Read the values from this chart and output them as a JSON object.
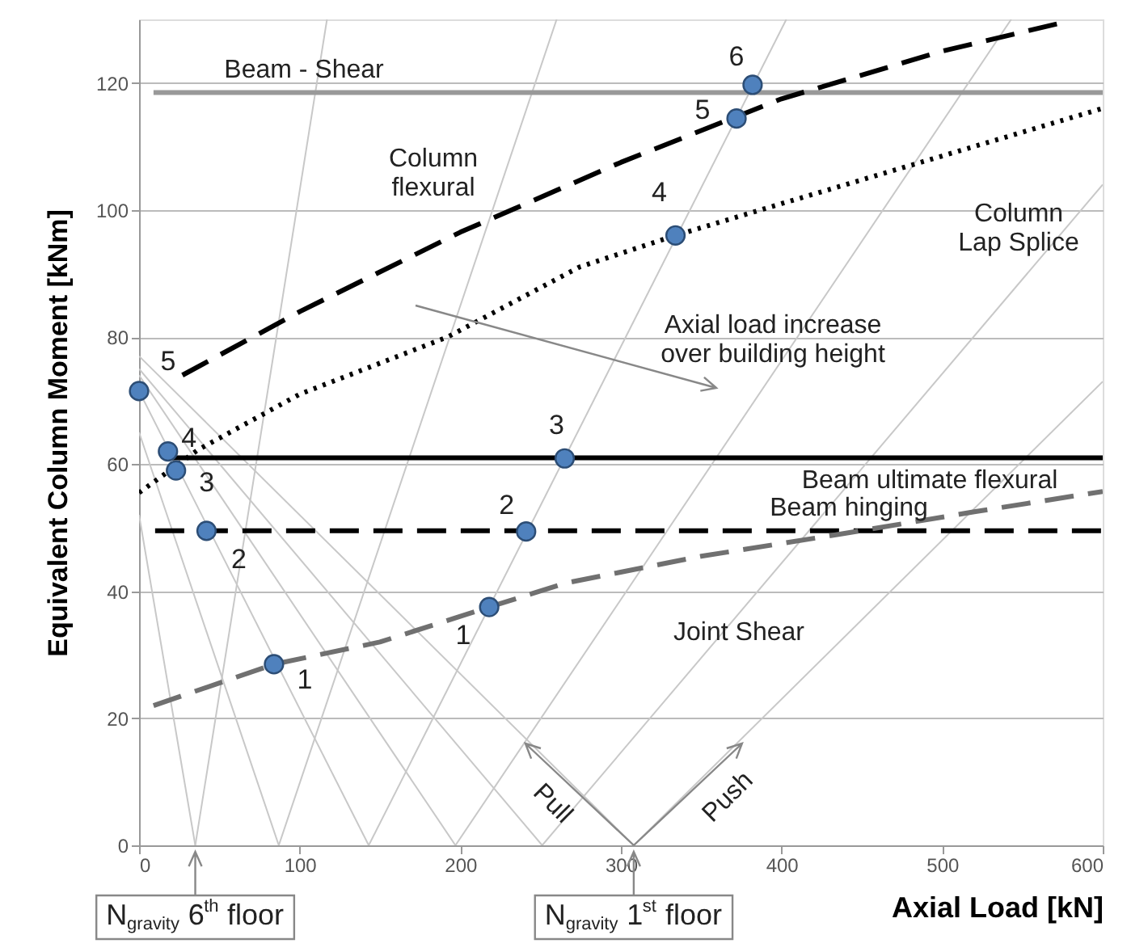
{
  "chart_data": {
    "type": "line",
    "xlabel": "Axial Load [kN]",
    "ylabel": "Equivalent Column Moment [kNm]",
    "xlim": [
      0,
      600
    ],
    "ylim": [
      0,
      130
    ],
    "xticks": [
      0,
      100,
      200,
      300,
      400,
      500,
      600
    ],
    "yticks": [
      0,
      20,
      40,
      60,
      80,
      100,
      120
    ],
    "grid": "y",
    "series": [
      {
        "type": "line",
        "color": "#c8c8c8",
        "line_style": "solid",
        "x": [
          35,
          117
        ],
        "values": [
          0,
          130
        ]
      },
      {
        "type": "line",
        "color": "#c8c8c8",
        "line_style": "solid",
        "x": [
          87,
          260
        ],
        "values": [
          0,
          130
        ]
      },
      {
        "type": "line",
        "color": "#c8c8c8",
        "line_style": "solid",
        "x": [
          143,
          403
        ],
        "values": [
          0,
          130
        ]
      },
      {
        "type": "line",
        "color": "#c8c8c8",
        "line_style": "solid",
        "x": [
          197,
          543
        ],
        "values": [
          0,
          130
        ]
      },
      {
        "type": "line",
        "color": "#c8c8c8",
        "line_style": "solid",
        "x": [
          251,
          600
        ],
        "values": [
          0,
          104
        ]
      },
      {
        "type": "line",
        "color": "#c8c8c8",
        "line_style": "solid",
        "x": [
          308,
          600
        ],
        "values": [
          0,
          73
        ]
      },
      {
        "type": "line",
        "color": "#c8c8c8",
        "line_style": "solid",
        "x": [
          35,
          0
        ],
        "values": [
          0,
          52
        ]
      },
      {
        "type": "line",
        "color": "#c8c8c8",
        "line_style": "solid",
        "x": [
          87,
          0
        ],
        "values": [
          0,
          65
        ]
      },
      {
        "type": "line",
        "color": "#c8c8c8",
        "line_style": "solid",
        "x": [
          143,
          0
        ],
        "values": [
          0,
          71.5
        ]
      },
      {
        "type": "line",
        "color": "#c8c8c8",
        "line_style": "solid",
        "x": [
          197,
          0
        ],
        "values": [
          0,
          74
        ]
      },
      {
        "type": "line",
        "color": "#c8c8c8",
        "line_style": "solid",
        "x": [
          251,
          0
        ],
        "values": [
          0,
          75
        ]
      },
      {
        "type": "line",
        "color": "#c8c8c8",
        "line_style": "solid",
        "x": [
          308,
          0
        ],
        "values": [
          0,
          77
        ]
      },
      {
        "type": "line",
        "color": "#999999",
        "line_style": "solid",
        "x": [
          9,
          600
        ],
        "values": [
          118.5,
          118.5
        ]
      },
      {
        "type": "line",
        "color": "#000000",
        "line_style": "solid",
        "x": [
          20,
          600
        ],
        "values": [
          61,
          61
        ]
      },
      {
        "type": "line",
        "color": "#000000",
        "line_style": "dashed",
        "x": [
          10,
          600
        ],
        "values": [
          49.5,
          49.5
        ]
      },
      {
        "type": "line",
        "color": "#000000",
        "line_style": "dashed",
        "x": [
          27,
          100,
          200,
          300,
          400,
          500,
          575
        ],
        "values": [
          74,
          84,
          96.5,
          107.5,
          117.5,
          125,
          129.5
        ]
      },
      {
        "type": "line",
        "color": "#000000",
        "line_style": "dotted",
        "x": [
          0,
          37,
          100,
          192,
          274,
          334,
          400,
          500,
          600
        ],
        "values": [
          55.5,
          62.3,
          71,
          80,
          91,
          96,
          101,
          108.5,
          116
        ]
      },
      {
        "type": "line",
        "color": "#707070",
        "line_style": "dashed",
        "x": [
          9,
          84,
          150,
          218,
          266,
          350,
          437,
          520,
          600
        ],
        "values": [
          22,
          28.5,
          32,
          37.5,
          41.3,
          45.5,
          49,
          52.5,
          55.7
        ]
      },
      {
        "type": "scatter",
        "color": "#4f81bd",
        "marker": "circle",
        "x": [
          0,
          18,
          23,
          42,
          84,
          218,
          241,
          265,
          334,
          372,
          382
        ],
        "values": [
          71.5,
          62,
          59,
          49.5,
          28.5,
          37.5,
          49.4,
          60.9,
          96,
          114.4,
          119.7
        ]
      }
    ],
    "annotations": [
      "Beam - Shear",
      "Column\nflexural",
      "Column\nLap Splice",
      "Axial load increase\nover building height",
      "Beam ultimate flexural",
      "Beam hinging",
      "Joint Shear",
      {
        "text": "Pull",
        "x": 308,
        "y": 0
      },
      {
        "text": "Push",
        "x": 308,
        "y": 0
      },
      {
        "text": "N$_{gravity}$ 6$^{th}$ floor",
        "x": 35,
        "y": 0
      },
      {
        "text": "N$_{gravity}$ 1$^{st}$ floor",
        "x": 308,
        "y": 0
      },
      {
        "text": "5",
        "x": 0,
        "y": 71.5
      },
      {
        "text": "4",
        "x": 18,
        "y": 62
      },
      {
        "text": "3",
        "x": 23,
        "y": 59
      },
      {
        "text": "2",
        "x": 42,
        "y": 49.5
      },
      {
        "text": "1",
        "x": 84,
        "y": 28.5
      },
      {
        "text": "1",
        "x": 218,
        "y": 37.5
      },
      {
        "text": "2",
        "x": 241,
        "y": 49.4
      },
      {
        "text": "3",
        "x": 265,
        "y": 60.9
      },
      {
        "text": "4",
        "x": 334,
        "y": 96
      },
      {
        "text": "5",
        "x": 372,
        "y": 114.4
      },
      {
        "text": "6",
        "x": 382,
        "y": 119.7
      }
    ]
  }
}
